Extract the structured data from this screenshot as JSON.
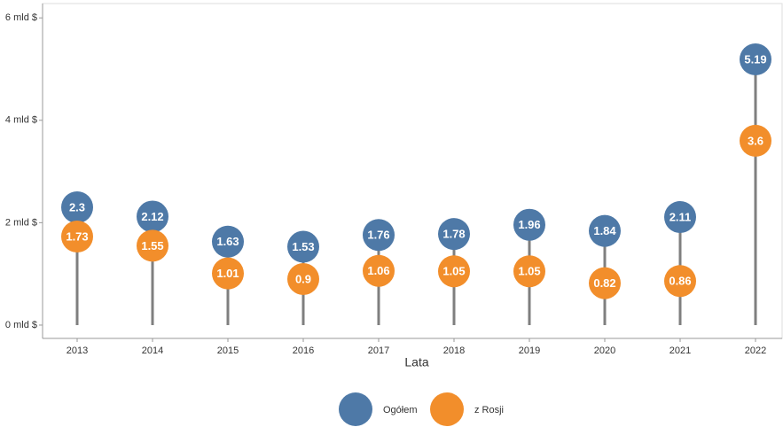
{
  "chart_data": {
    "type": "lollipop",
    "x_label": "Lata",
    "categories": [
      "2013",
      "2014",
      "2015",
      "2016",
      "2017",
      "2018",
      "2019",
      "2020",
      "2021",
      "2022"
    ],
    "series": [
      {
        "name": "Ogółem",
        "color": "#4e79a7",
        "values": [
          2.3,
          2.12,
          1.63,
          1.53,
          1.76,
          1.78,
          1.96,
          1.84,
          2.11,
          5.19
        ]
      },
      {
        "name": "z Rosji",
        "color": "#f28e2b",
        "values": [
          1.73,
          1.55,
          1.01,
          0.9,
          1.06,
          1.05,
          1.05,
          0.82,
          0.86,
          3.6
        ]
      }
    ],
    "ylim": [
      -0.26,
      6.28
    ],
    "yticks": [
      {
        "value": 0,
        "label": "0 mld $"
      },
      {
        "value": 2,
        "label": "2 mld $"
      },
      {
        "value": 4,
        "label": "4 mld $"
      },
      {
        "value": 6,
        "label": "6 mld $"
      }
    ],
    "legend": "bottom"
  }
}
